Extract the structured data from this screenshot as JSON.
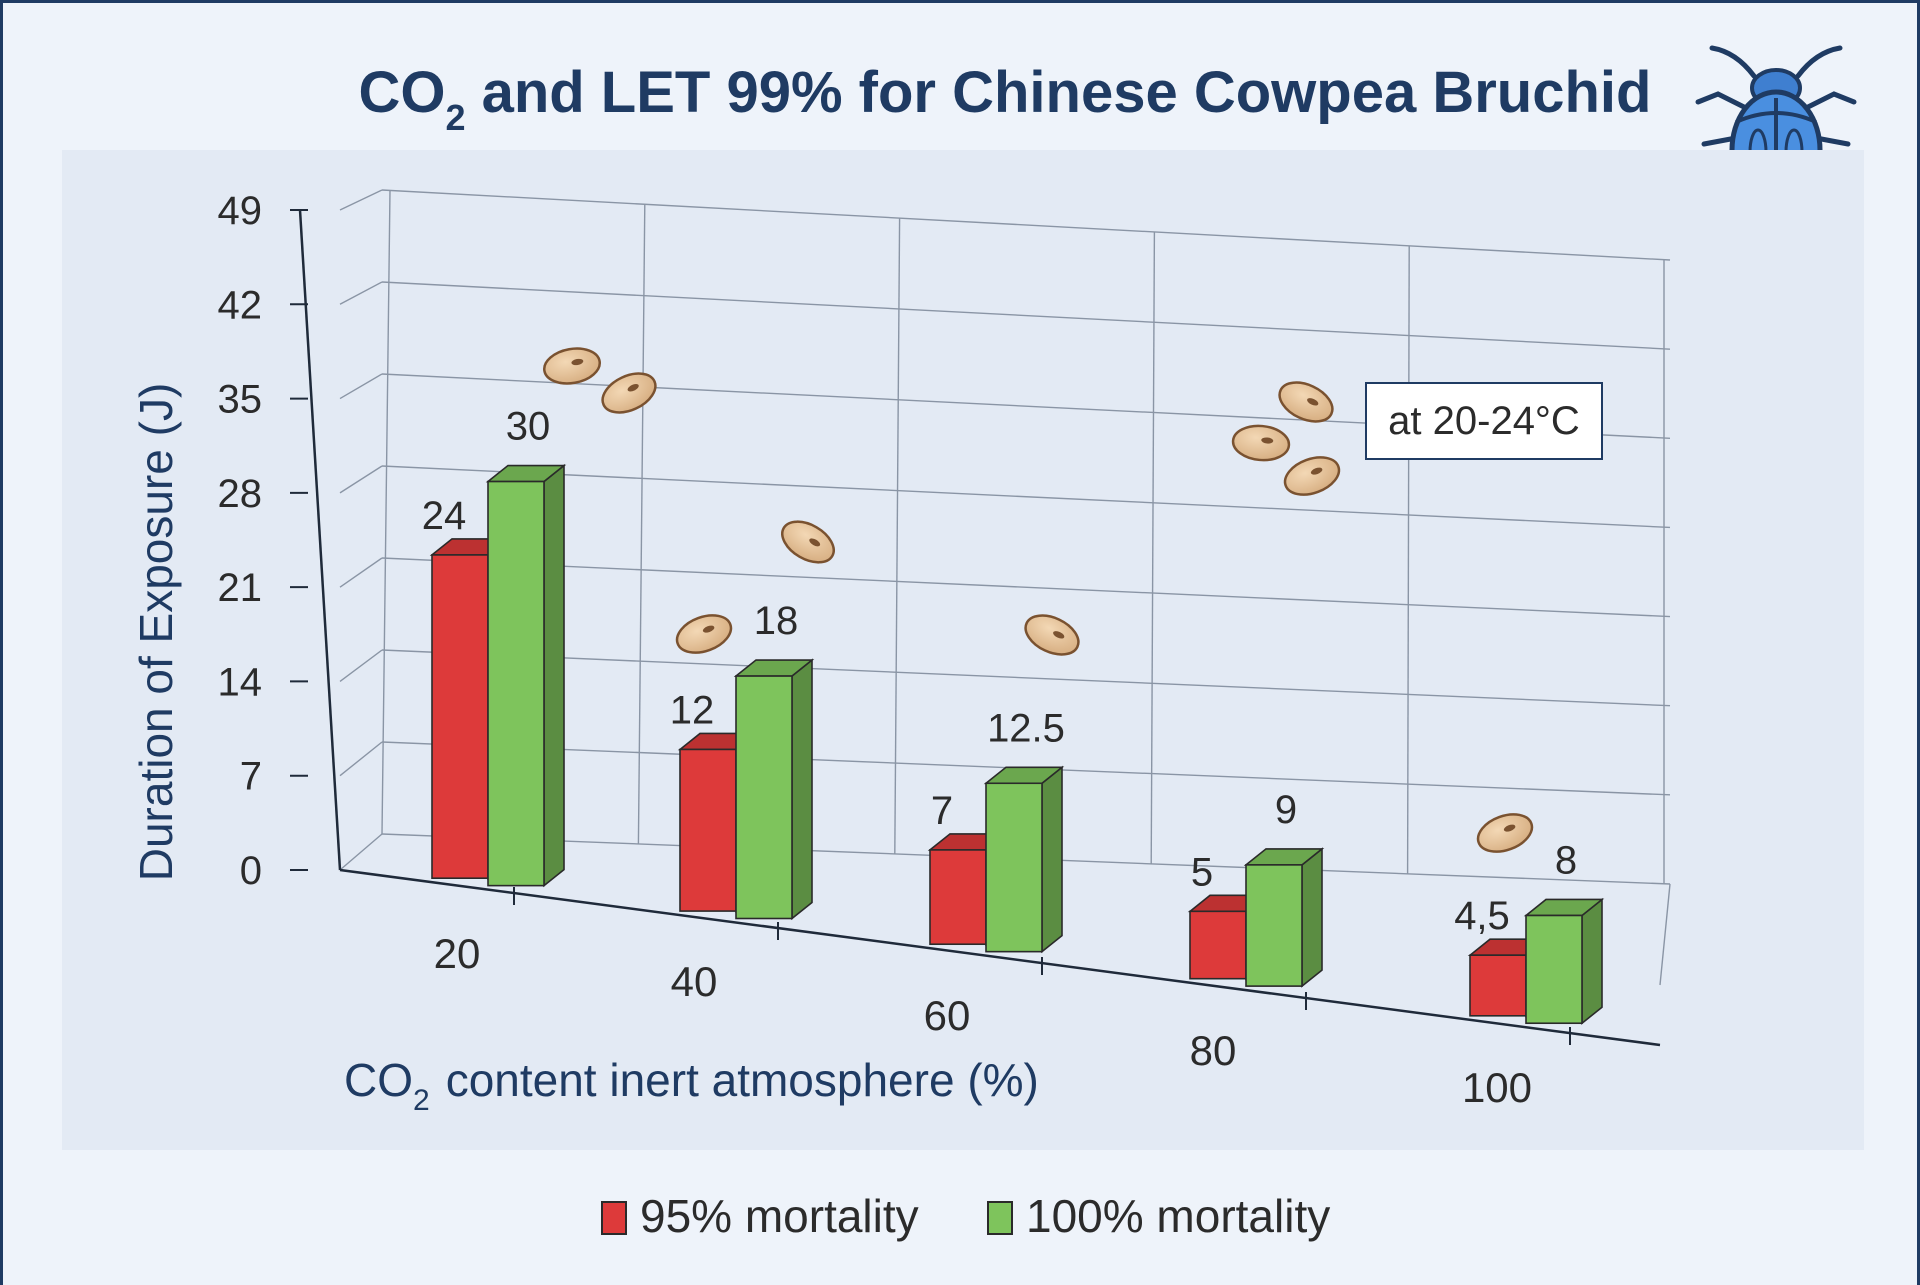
{
  "title": {
    "prefix": "CO",
    "subscript": "2",
    "rest": "and LET 99% for Chinese Cowpea Bruchid"
  },
  "xlabel": {
    "prefix": "CO",
    "subscript": "2",
    "rest": "content inert atmosphere (%)"
  },
  "ylabel": "Duration of Exposure (J)",
  "annotation": "at 20-24°C",
  "icons": {
    "title_icon": "beetle-icon",
    "decorations": "bean-icon"
  },
  "colors": {
    "series_95": "#dd3a3a",
    "series_100": "#7ec45c",
    "title": "#1f3b63",
    "plot_background": "#e3eaf4"
  },
  "chart_data": {
    "type": "bar",
    "projection": "3d",
    "categories": [
      "20",
      "40",
      "60",
      "80",
      "100"
    ],
    "series": [
      {
        "name": "95% mortality",
        "color": "#dd3a3a",
        "values": [
          24,
          12,
          7,
          5,
          4.5
        ],
        "labels": [
          "24",
          "12",
          "7",
          "5",
          "4,5"
        ]
      },
      {
        "name": "100% mortality",
        "color": "#7ec45c",
        "values": [
          30,
          18,
          12.5,
          9,
          8
        ],
        "labels": [
          "30",
          "18",
          "12.5",
          "9",
          "8"
        ]
      }
    ],
    "yticks": [
      "0",
      "7",
      "14",
      "21",
      "28",
      "35",
      "42",
      "49"
    ],
    "ylim": [
      0,
      49
    ],
    "grid": true,
    "legend": "bottom-center"
  }
}
